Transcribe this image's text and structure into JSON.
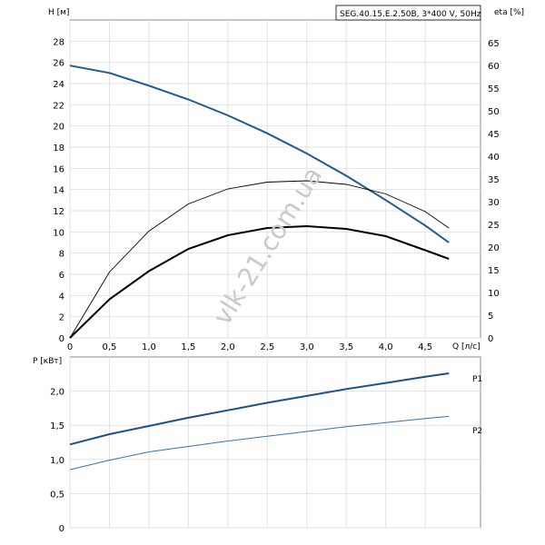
{
  "chart_data": [
    {
      "type": "line",
      "title": "SEG.40.15.E.2.50B, 3*400 V, 50Hz",
      "xlabel": "Q [л/с]",
      "ylabel": "H [м]",
      "y2label": "eta [%]",
      "xlim": [
        0,
        5.2
      ],
      "ylim": [
        0,
        30
      ],
      "y2lim": [
        0,
        70
      ],
      "x_ticks": [
        "0",
        "0,5",
        "1,0",
        "1,5",
        "2,0",
        "2,5",
        "3,0",
        "3,5",
        "4,0",
        "4,5"
      ],
      "y_ticks": [
        "0",
        "2",
        "4",
        "6",
        "8",
        "10",
        "12",
        "14",
        "16",
        "18",
        "20",
        "22",
        "24",
        "26",
        "28"
      ],
      "y2_ticks": [
        "0",
        "5",
        "10",
        "15",
        "20",
        "25",
        "30",
        "35",
        "40",
        "45",
        "50",
        "55",
        "60",
        "65"
      ],
      "grid": true,
      "series": [
        {
          "axis": "left",
          "color": "#1f5a8f",
          "x": [
            0,
            0.5,
            1.0,
            1.5,
            2.0,
            2.5,
            3.0,
            3.5,
            4.0,
            4.5,
            4.8
          ],
          "values": [
            25.7,
            25.0,
            23.8,
            22.5,
            21.0,
            19.3,
            17.4,
            15.3,
            13.0,
            10.6,
            9.0
          ]
        },
        {
          "axis": "right",
          "color": "#000000",
          "x": [
            0,
            0.5,
            1.0,
            1.5,
            2.0,
            2.5,
            3.0,
            3.5,
            4.0,
            4.5,
            4.8
          ],
          "values": [
            0,
            14.5,
            23.5,
            29.5,
            32.8,
            34.3,
            34.6,
            33.8,
            31.7,
            27.8,
            24.2
          ]
        },
        {
          "axis": "right",
          "color": "#000000",
          "x": [
            0,
            0.5,
            1.0,
            1.5,
            2.0,
            2.5,
            3.0,
            3.5,
            4.0,
            4.5,
            4.8
          ],
          "values": [
            0,
            8.5,
            14.7,
            19.6,
            22.6,
            24.2,
            24.6,
            24.0,
            22.4,
            19.3,
            17.4
          ]
        }
      ]
    },
    {
      "type": "line",
      "ylabel": "P [кВт]",
      "xlim": [
        0,
        5.2
      ],
      "ylim": [
        0,
        2.5
      ],
      "y_ticks": [
        "0",
        "0,5",
        "1,0",
        "1,5",
        "2,0"
      ],
      "grid": true,
      "series": [
        {
          "name": "P1",
          "color": "#1f4e8c",
          "x": [
            0,
            0.5,
            1.0,
            1.5,
            2.0,
            2.5,
            3.0,
            3.5,
            4.0,
            4.5,
            4.8
          ],
          "values": [
            1.22,
            1.37,
            1.49,
            1.61,
            1.72,
            1.83,
            1.93,
            2.03,
            2.12,
            2.21,
            2.26
          ]
        },
        {
          "name": "P2",
          "color": "#3d6fa8",
          "x": [
            0,
            0.5,
            1.0,
            1.5,
            2.0,
            2.5,
            3.0,
            3.5,
            4.0,
            4.5,
            4.8
          ],
          "values": [
            0.85,
            0.99,
            1.11,
            1.19,
            1.27,
            1.34,
            1.41,
            1.48,
            1.54,
            1.6,
            1.63
          ]
        }
      ]
    }
  ],
  "watermark": "vlk-21.com.ua"
}
